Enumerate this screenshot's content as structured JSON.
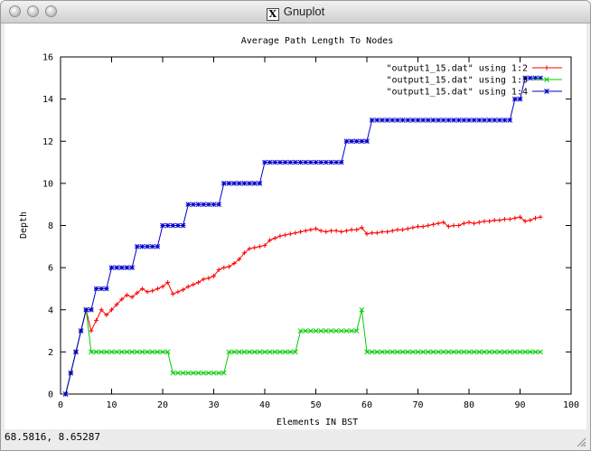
{
  "window": {
    "title": "Gnuplot",
    "x_glyph": "X"
  },
  "status_bar": {
    "coords": "68.5816,  8.65287"
  },
  "chart_data": {
    "type": "line",
    "title": "Average Path Length To Nodes",
    "xlabel": "Elements IN BST",
    "ylabel": "Depth",
    "xlim": [
      0,
      100
    ],
    "ylim": [
      0,
      16
    ],
    "xticks": [
      0,
      10,
      20,
      30,
      40,
      50,
      60,
      70,
      80,
      90,
      100
    ],
    "yticks": [
      0,
      2,
      4,
      6,
      8,
      10,
      12,
      14,
      16
    ],
    "grid": false,
    "legend_position": "top-right",
    "series": [
      {
        "name": "\"output1_15.dat\" using 1:2",
        "color": "#ff0000",
        "marker": "plus",
        "x": [
          1,
          2,
          3,
          4,
          5,
          6,
          7,
          8,
          9,
          10,
          11,
          12,
          13,
          14,
          15,
          16,
          17,
          18,
          19,
          20,
          21,
          22,
          23,
          24,
          25,
          26,
          27,
          28,
          29,
          30,
          31,
          32,
          33,
          34,
          35,
          36,
          37,
          38,
          39,
          40,
          41,
          42,
          43,
          44,
          45,
          46,
          47,
          48,
          49,
          50,
          51,
          52,
          53,
          54,
          55,
          56,
          57,
          58,
          59,
          60,
          61,
          62,
          63,
          64,
          65,
          66,
          67,
          68,
          69,
          70,
          71,
          72,
          73,
          74,
          75,
          76,
          77,
          78,
          79,
          80,
          81,
          82,
          83,
          84,
          85,
          86,
          87,
          88,
          89,
          90,
          91,
          92,
          93,
          94
        ],
        "y": [
          0,
          1,
          2,
          3,
          4,
          3,
          3.5,
          4,
          3.75,
          4,
          4.25,
          4.5,
          4.7,
          4.6,
          4.8,
          5,
          4.85,
          4.9,
          5,
          5.1,
          5.3,
          4.75,
          4.85,
          4.95,
          5.1,
          5.2,
          5.3,
          5.45,
          5.5,
          5.6,
          5.9,
          6,
          6.05,
          6.2,
          6.4,
          6.7,
          6.9,
          6.95,
          7,
          7.05,
          7.3,
          7.4,
          7.5,
          7.55,
          7.6,
          7.65,
          7.7,
          7.75,
          7.8,
          7.85,
          7.75,
          7.7,
          7.75,
          7.75,
          7.7,
          7.75,
          7.8,
          7.8,
          7.9,
          7.6,
          7.65,
          7.65,
          7.7,
          7.7,
          7.75,
          7.8,
          7.8,
          7.85,
          7.9,
          7.95,
          7.95,
          8,
          8.05,
          8.1,
          8.15,
          7.95,
          8,
          8,
          8.1,
          8.15,
          8.1,
          8.15,
          8.2,
          8.2,
          8.25,
          8.25,
          8.3,
          8.3,
          8.35,
          8.4,
          8.2,
          8.25,
          8.35,
          8.4
        ]
      },
      {
        "name": "\"output1_15.dat\" using 1:3",
        "color": "#00cc00",
        "marker": "cross",
        "x": [
          1,
          2,
          3,
          4,
          5,
          6,
          7,
          8,
          9,
          10,
          11,
          12,
          13,
          14,
          15,
          16,
          17,
          18,
          19,
          20,
          21,
          22,
          23,
          24,
          25,
          26,
          27,
          28,
          29,
          30,
          31,
          32,
          33,
          34,
          35,
          36,
          37,
          38,
          39,
          40,
          41,
          42,
          43,
          44,
          45,
          46,
          47,
          48,
          49,
          50,
          51,
          52,
          53,
          54,
          55,
          56,
          57,
          58,
          59,
          60,
          61,
          62,
          63,
          64,
          65,
          66,
          67,
          68,
          69,
          70,
          71,
          72,
          73,
          74,
          75,
          76,
          77,
          78,
          79,
          80,
          81,
          82,
          83,
          84,
          85,
          86,
          87,
          88,
          89,
          90,
          91,
          92,
          93,
          94
        ],
        "y": [
          0,
          1,
          2,
          3,
          4,
          2,
          2,
          2,
          2,
          2,
          2,
          2,
          2,
          2,
          2,
          2,
          2,
          2,
          2,
          2,
          2,
          1,
          1,
          1,
          1,
          1,
          1,
          1,
          1,
          1,
          1,
          1,
          2,
          2,
          2,
          2,
          2,
          2,
          2,
          2,
          2,
          2,
          2,
          2,
          2,
          2,
          3,
          3,
          3,
          3,
          3,
          3,
          3,
          3,
          3,
          3,
          3,
          3,
          4,
          2,
          2,
          2,
          2,
          2,
          2,
          2,
          2,
          2,
          2,
          2,
          2,
          2,
          2,
          2,
          2,
          2,
          2,
          2,
          2,
          2,
          2,
          2,
          2,
          2,
          2,
          2,
          2,
          2,
          2,
          2,
          2,
          2,
          2,
          2
        ]
      },
      {
        "name": "\"output1_15.dat\" using 1:4",
        "color": "#0000cc",
        "marker": "star",
        "x": [
          1,
          2,
          3,
          4,
          5,
          6,
          7,
          8,
          9,
          10,
          11,
          12,
          13,
          14,
          15,
          16,
          17,
          18,
          19,
          20,
          21,
          22,
          23,
          24,
          25,
          26,
          27,
          28,
          29,
          30,
          31,
          32,
          33,
          34,
          35,
          36,
          37,
          38,
          39,
          40,
          41,
          42,
          43,
          44,
          45,
          46,
          47,
          48,
          49,
          50,
          51,
          52,
          53,
          54,
          55,
          56,
          57,
          58,
          59,
          60,
          61,
          62,
          63,
          64,
          65,
          66,
          67,
          68,
          69,
          70,
          71,
          72,
          73,
          74,
          75,
          76,
          77,
          78,
          79,
          80,
          81,
          82,
          83,
          84,
          85,
          86,
          87,
          88,
          89,
          90,
          91,
          92,
          93,
          94
        ],
        "y": [
          0,
          1,
          2,
          3,
          4,
          4,
          5,
          5,
          5,
          6,
          6,
          6,
          6,
          6,
          7,
          7,
          7,
          7,
          7,
          8,
          8,
          8,
          8,
          8,
          9,
          9,
          9,
          9,
          9,
          9,
          9,
          10,
          10,
          10,
          10,
          10,
          10,
          10,
          10,
          11,
          11,
          11,
          11,
          11,
          11,
          11,
          11,
          11,
          11,
          11,
          11,
          11,
          11,
          11,
          11,
          12,
          12,
          12,
          12,
          12,
          13,
          13,
          13,
          13,
          13,
          13,
          13,
          13,
          13,
          13,
          13,
          13,
          13,
          13,
          13,
          13,
          13,
          13,
          13,
          13,
          13,
          13,
          13,
          13,
          13,
          13,
          13,
          13,
          14,
          14,
          15,
          15,
          15,
          15
        ]
      }
    ]
  }
}
